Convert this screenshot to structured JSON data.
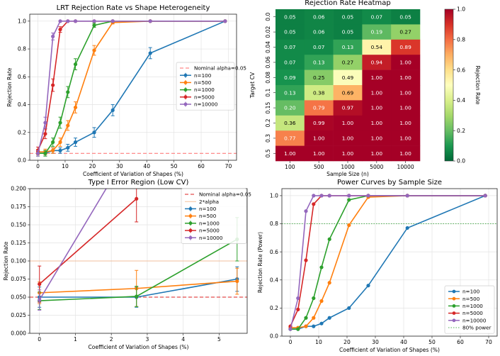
{
  "colors": {
    "n100": "#1f77b4",
    "n500": "#ff7f0e",
    "n1000": "#2ca02c",
    "n5000": "#d62728",
    "n10000": "#9467bd",
    "nominal": "#ff6b6b",
    "nominal_bl": "#dd2222",
    "twoalpha": "#f4b183",
    "power80": "#4caf50"
  },
  "chart_data": [
    {
      "type": "line",
      "title": "LRT Rejection Rate vs Shape Heterogeneity",
      "xlabel": "Coefficient of Variation of Shapes (%)",
      "ylabel": "Rejection Rate",
      "xlim": [
        -3,
        73
      ],
      "ylim": [
        0,
        1.05
      ],
      "xticks": [
        "0",
        "10",
        "20",
        "30",
        "40",
        "50",
        "60",
        "70"
      ],
      "yticks": [
        "0.0",
        "0.2",
        "0.4",
        "0.6",
        "0.8",
        "1.0"
      ],
      "grid": true,
      "legend_position": "center-right",
      "reference": {
        "name": "Nominal alpha=0.05",
        "y": 0.05
      },
      "series": [
        {
          "name": "n=100",
          "x": [
            0,
            2.7,
            5.5,
            8.2,
            11,
            13.8,
            20.7,
            27.5,
            41.3,
            68.8
          ],
          "y": [
            0.05,
            0.05,
            0.07,
            0.07,
            0.09,
            0.13,
            0.2,
            0.36,
            0.77,
            1.0
          ],
          "err": [
            0.02,
            0.02,
            0.02,
            0.02,
            0.025,
            0.03,
            0.035,
            0.04,
            0.04,
            0.0
          ]
        },
        {
          "name": "n=500",
          "x": [
            0,
            2.7,
            5.5,
            8.2,
            11,
            13.8,
            20.7,
            27.5,
            41.3,
            68.8
          ],
          "y": [
            0.06,
            0.06,
            0.07,
            0.13,
            0.25,
            0.38,
            0.79,
            0.99,
            1.0,
            1.0
          ],
          "err": [
            0.02,
            0.02,
            0.02,
            0.03,
            0.035,
            0.04,
            0.035,
            0.01,
            0.0,
            0.0
          ]
        },
        {
          "name": "n=1000",
          "x": [
            0,
            2.7,
            5.5,
            8.2,
            11,
            13.8,
            20.7,
            27.5,
            41.3,
            68.8
          ],
          "y": [
            0.05,
            0.05,
            0.13,
            0.27,
            0.49,
            0.69,
            0.97,
            1.0,
            1.0,
            1.0
          ],
          "err": [
            0.02,
            0.02,
            0.03,
            0.04,
            0.04,
            0.04,
            0.015,
            0.0,
            0.0,
            0.0
          ]
        },
        {
          "name": "n=5000",
          "x": [
            0,
            2.7,
            5.5,
            8.2,
            11,
            13.8,
            20.7,
            27.5,
            41.3,
            68.8
          ],
          "y": [
            0.07,
            0.19,
            0.54,
            0.94,
            1.0,
            1.0,
            1.0,
            1.0,
            1.0,
            1.0
          ],
          "err": [
            0.025,
            0.035,
            0.045,
            0.02,
            0.0,
            0.0,
            0.0,
            0.0,
            0.0,
            0.0
          ]
        },
        {
          "name": "n=10000",
          "x": [
            0,
            2.7,
            5.5,
            8.2,
            11,
            13.8,
            20.7,
            27.5,
            41.3,
            68.8
          ],
          "y": [
            0.05,
            0.27,
            0.89,
            1.0,
            1.0,
            1.0,
            1.0,
            1.0,
            1.0,
            1.0
          ],
          "err": [
            0.02,
            0.04,
            0.025,
            0.0,
            0.0,
            0.0,
            0.0,
            0.0,
            0.0,
            0.0
          ]
        }
      ]
    },
    {
      "type": "heatmap",
      "title": "Rejection Rate Heatmap",
      "xlabel": "Sample Size (n)",
      "ylabel": "Target CV",
      "colorbar_label": "Rejection Rate",
      "colorbar_ticks": [
        "0.0",
        "0.2",
        "0.4",
        "0.6",
        "0.8",
        "1.0"
      ],
      "x_categories": [
        "100",
        "500",
        "1000",
        "5000",
        "10000"
      ],
      "y_categories": [
        "0.0",
        "0.02",
        "0.04",
        "0.06",
        "0.08",
        "0.1",
        "0.15",
        "0.2",
        "0.3",
        "0.5"
      ],
      "values": [
        [
          0.05,
          0.06,
          0.05,
          0.07,
          0.05
        ],
        [
          0.05,
          0.06,
          0.05,
          0.19,
          0.27
        ],
        [
          0.07,
          0.07,
          0.13,
          0.54,
          0.89
        ],
        [
          0.07,
          0.13,
          0.27,
          0.94,
          1.0
        ],
        [
          0.09,
          0.25,
          0.49,
          1.0,
          1.0
        ],
        [
          0.13,
          0.38,
          0.69,
          1.0,
          1.0
        ],
        [
          0.2,
          0.79,
          0.97,
          1.0,
          1.0
        ],
        [
          0.36,
          0.99,
          1.0,
          1.0,
          1.0
        ],
        [
          0.77,
          1.0,
          1.0,
          1.0,
          1.0
        ],
        [
          1.0,
          1.0,
          1.0,
          1.0,
          1.0
        ]
      ]
    },
    {
      "type": "line",
      "title": "Type I Error Region (Low CV)",
      "xlabel": "Coefficient of Variation of Shapes (%)",
      "ylabel": "Rejection Rate",
      "xlim": [
        -0.27,
        5.78
      ],
      "ylim": [
        0,
        0.2
      ],
      "xticks": [
        "0",
        "1",
        "2",
        "3",
        "4",
        "5"
      ],
      "yticks": [
        "0.000",
        "0.025",
        "0.050",
        "0.075",
        "0.100",
        "0.125",
        "0.150",
        "0.175",
        "0.200"
      ],
      "grid": true,
      "legend_position": "upper-right",
      "references": [
        {
          "name": "Nominal alpha=0.05",
          "y": 0.05
        },
        {
          "name": "2*alpha",
          "y": 0.1
        }
      ],
      "series": [
        {
          "name": "n=100",
          "x": [
            0,
            2.7,
            5.5
          ],
          "y": [
            0.05,
            0.05,
            0.075
          ],
          "err": [
            0.014,
            0.014,
            0.017
          ]
        },
        {
          "name": "n=500",
          "x": [
            0,
            2.7,
            5.5
          ],
          "y": [
            0.056,
            0.062,
            0.072
          ],
          "err": [
            0.015,
            0.025,
            0.018
          ]
        },
        {
          "name": "n=1000",
          "x": [
            0,
            2.7,
            5.5
          ],
          "y": [
            0.045,
            0.051,
            0.13
          ],
          "err": [
            0.012,
            0.014,
            0.03
          ]
        },
        {
          "name": "n=5000",
          "x": [
            0,
            2.7
          ],
          "y": [
            0.068,
            0.186
          ],
          "err": [
            0.025,
            0.032
          ]
        },
        {
          "name": "n=10000",
          "x": [
            0,
            2.7
          ],
          "y": [
            0.046,
            0.27
          ],
          "err": [
            0.014,
            0.04
          ]
        }
      ]
    },
    {
      "type": "line",
      "title": "Power Curves by Sample Size",
      "xlabel": "Coefficient of Variation of Shapes (%)",
      "ylabel": "Rejection Rate (Power)",
      "xlim": [
        -3,
        73
      ],
      "ylim": [
        0,
        1.05
      ],
      "xticks": [
        "0",
        "10",
        "20",
        "30",
        "40",
        "50",
        "60",
        "70"
      ],
      "yticks": [
        "0.0",
        "0.2",
        "0.4",
        "0.6",
        "0.8",
        "1.0"
      ],
      "grid": true,
      "legend_position": "lower-right",
      "reference": {
        "name": "80% power",
        "y": 0.8
      },
      "series": [
        {
          "name": "n=100",
          "x": [
            0,
            2.7,
            5.5,
            8.2,
            11,
            13.8,
            20.7,
            27.5,
            41.3,
            68.8
          ],
          "y": [
            0.05,
            0.05,
            0.07,
            0.07,
            0.09,
            0.13,
            0.2,
            0.36,
            0.77,
            1.0
          ]
        },
        {
          "name": "n=500",
          "x": [
            0,
            2.7,
            5.5,
            8.2,
            11,
            13.8,
            20.7,
            27.5,
            41.3,
            68.8
          ],
          "y": [
            0.06,
            0.06,
            0.07,
            0.13,
            0.25,
            0.38,
            0.79,
            0.99,
            1.0,
            1.0
          ]
        },
        {
          "name": "n=1000",
          "x": [
            0,
            2.7,
            5.5,
            8.2,
            11,
            13.8,
            20.7,
            27.5,
            41.3,
            68.8
          ],
          "y": [
            0.05,
            0.05,
            0.13,
            0.27,
            0.49,
            0.69,
            0.97,
            1.0,
            1.0,
            1.0
          ]
        },
        {
          "name": "n=5000",
          "x": [
            0,
            2.7,
            5.5,
            8.2,
            11,
            13.8,
            20.7,
            27.5,
            41.3,
            68.8
          ],
          "y": [
            0.07,
            0.19,
            0.54,
            0.94,
            1.0,
            1.0,
            1.0,
            1.0,
            1.0,
            1.0
          ]
        },
        {
          "name": "n=10000",
          "x": [
            0,
            2.7,
            5.5,
            8.2,
            11,
            13.8,
            20.7,
            27.5,
            41.3,
            68.8
          ],
          "y": [
            0.05,
            0.27,
            0.89,
            1.0,
            1.0,
            1.0,
            1.0,
            1.0,
            1.0,
            1.0
          ]
        }
      ]
    }
  ]
}
